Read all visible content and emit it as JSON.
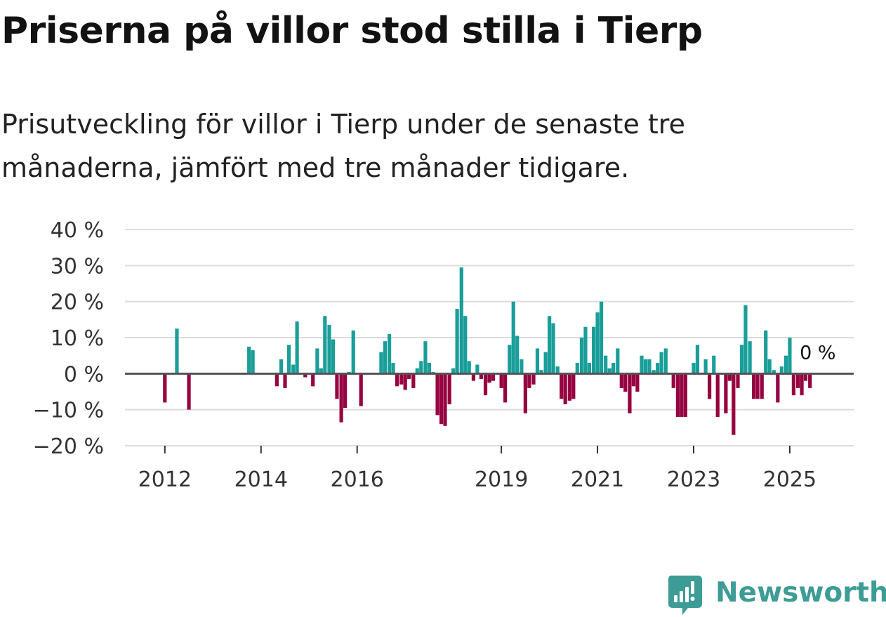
{
  "title": "Priserna på villor stod stilla i Tierp",
  "subtitle": "Prisutveckling för villor i Tierp under de senaste tre månaderna, jämfört med tre månader tidigare.",
  "brand": {
    "name": "Newsworthy",
    "color": "#3d9c95"
  },
  "colors": {
    "positive": "#1a9e99",
    "negative": "#960340",
    "grid": "#dcdcdc",
    "zero_line": "#555555",
    "axis_text": "#333333"
  },
  "chart_data": {
    "type": "bar",
    "title": "Priserna på villor stod stilla i Tierp",
    "xlabel": "",
    "ylabel": "",
    "ylim": [
      -20,
      40
    ],
    "yticks": [
      40,
      30,
      20,
      10,
      0,
      -10,
      -20
    ],
    "ytick_labels": [
      "40 %",
      "30 %",
      "20 %",
      "10 %",
      "0 %",
      "−10 %",
      "−20 %"
    ],
    "grid": true,
    "x_range": [
      2011.17,
      2026.33
    ],
    "xticks": [
      2012,
      2014,
      2016,
      2019,
      2021,
      2023,
      2025
    ],
    "xtick_labels": [
      "2012",
      "2014",
      "2016",
      "2019",
      "2021",
      "2023",
      "2025"
    ],
    "last_value_label": "0 %",
    "series": [
      {
        "name": "Prisutveckling",
        "x": [
          2012,
          2012.25,
          2012.5,
          2013.75,
          2013.83,
          2014.33,
          2014.42,
          2014.5,
          2014.58,
          2014.67,
          2014.75,
          2014.92,
          2015.08,
          2015.17,
          2015.25,
          2015.33,
          2015.42,
          2015.5,
          2015.58,
          2015.67,
          2015.75,
          2015.83,
          2015.92,
          2016.08,
          2016.5,
          2016.58,
          2016.67,
          2016.75,
          2016.83,
          2016.92,
          2017,
          2017.08,
          2017.17,
          2017.25,
          2017.33,
          2017.42,
          2017.5,
          2017.58,
          2017.67,
          2017.75,
          2017.83,
          2017.92,
          2018,
          2018.08,
          2018.17,
          2018.25,
          2018.33,
          2018.42,
          2018.5,
          2018.58,
          2018.67,
          2018.75,
          2018.83,
          2018.92,
          2019,
          2019.08,
          2019.17,
          2019.25,
          2019.33,
          2019.42,
          2019.5,
          2019.58,
          2019.67,
          2019.75,
          2019.83,
          2019.92,
          2020,
          2020.08,
          2020.17,
          2020.25,
          2020.33,
          2020.42,
          2020.5,
          2020.58,
          2020.67,
          2020.75,
          2020.83,
          2020.92,
          2021,
          2021.08,
          2021.17,
          2021.25,
          2021.33,
          2021.42,
          2021.5,
          2021.58,
          2021.67,
          2021.75,
          2021.83,
          2021.92,
          2022,
          2022.08,
          2022.17,
          2022.25,
          2022.33,
          2022.42,
          2022.5,
          2022.58,
          2022.67,
          2022.75,
          2022.83,
          2022.92,
          2023,
          2023.08,
          2023.17,
          2023.25,
          2023.33,
          2023.42,
          2023.5,
          2023.58,
          2023.67,
          2023.75,
          2023.83,
          2023.92,
          2024,
          2024.08,
          2024.17,
          2024.25,
          2024.33,
          2024.42,
          2024.5,
          2024.58,
          2024.67,
          2024.75,
          2024.83,
          2024.92,
          2025,
          2025.08,
          2025.17,
          2025.25,
          2025.33,
          2025.42,
          2025.5
        ],
        "values": [
          -8,
          12.5,
          -10,
          7.5,
          6.5,
          -3.5,
          4,
          -4,
          8,
          2.5,
          14.5,
          -1,
          -3.5,
          7,
          1.5,
          16,
          13.5,
          9.5,
          -7,
          -13.5,
          -9.5,
          0.5,
          12,
          -9,
          6,
          9,
          11,
          3,
          -3.5,
          -3,
          -4.5,
          -1.5,
          -4,
          1.5,
          3.5,
          9,
          3,
          0.5,
          -11.5,
          -14,
          -14.5,
          -8.5,
          1.5,
          18,
          29.5,
          16,
          3.5,
          -2,
          2.5,
          -1.5,
          -6,
          -2.5,
          -2,
          0,
          -4,
          -8,
          8,
          20,
          10.5,
          4,
          -11,
          -4,
          -3,
          7,
          1,
          6,
          16,
          14,
          2,
          -7,
          -8.5,
          -7.5,
          -7,
          3,
          10,
          13,
          3,
          13,
          17,
          20,
          5,
          1.5,
          3,
          7,
          -4,
          -5,
          -11,
          -3.5,
          -5,
          5,
          4,
          4,
          1,
          3,
          6,
          7,
          0,
          -4,
          -12,
          -12,
          -12,
          0,
          3,
          8,
          0,
          4,
          -7,
          5,
          -12,
          0,
          -11,
          -2,
          -17,
          -4,
          8,
          19,
          9,
          -7,
          -7,
          -7,
          12,
          4,
          1,
          -8,
          2,
          5,
          10,
          -6,
          -4,
          -6,
          -2,
          -4,
          0
        ]
      }
    ]
  }
}
